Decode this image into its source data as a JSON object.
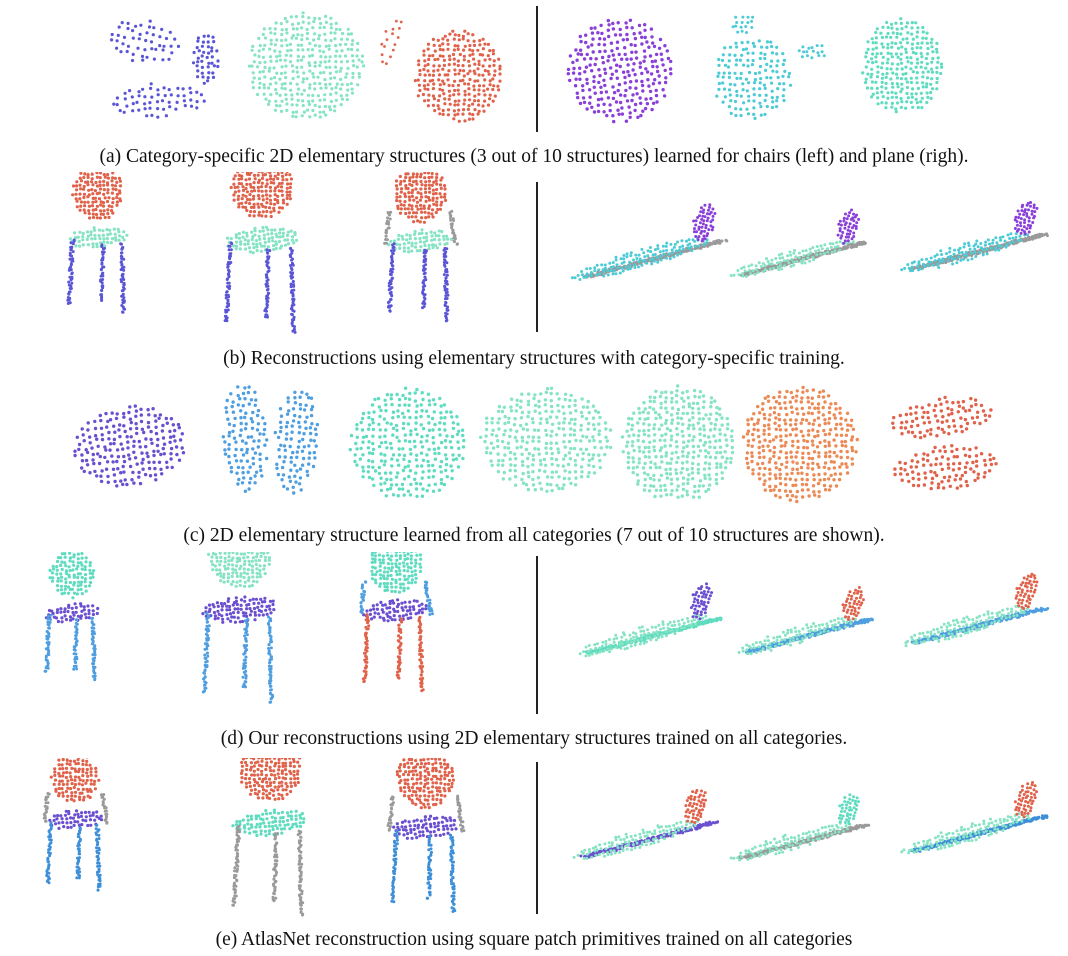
{
  "captions": {
    "a": "(a) Category-specific 2D elementary structures (3 out of 10 structures) learned for chairs (left) and plane (righ).",
    "b": "(b) Reconstructions using elementary structures with category-specific training.",
    "c": "(c) 2D elementary structure learned from all categories (7 out of 10 structures are shown).",
    "d": "(d) Our reconstructions using 2D elementary structures trained on all categories.",
    "e": "(e) AtlasNet reconstruction using square patch primitives trained on all categories"
  },
  "colors": {
    "indigo": "#5a55d6",
    "mint": "#86e3c3",
    "tomato": "#e0624a",
    "violet": "#8a3fd9",
    "cyan": "#4ccbd6",
    "aqua": "#5fdcc0",
    "sky": "#4f9ee0",
    "orange": "#ec8a55",
    "gray": "#9a9a9a",
    "blue": "#3d8fd8",
    "purple": "#6a4fd0"
  }
}
